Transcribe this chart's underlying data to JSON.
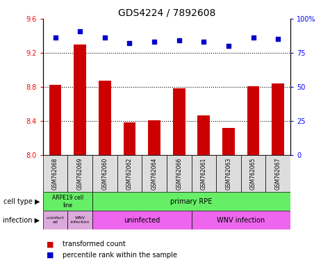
{
  "title": "GDS4224 / 7892608",
  "samples": [
    "GSM762068",
    "GSM762069",
    "GSM762060",
    "GSM762062",
    "GSM762064",
    "GSM762066",
    "GSM762061",
    "GSM762063",
    "GSM762065",
    "GSM762067"
  ],
  "transformed_count": [
    8.82,
    9.3,
    8.87,
    8.38,
    8.41,
    8.78,
    8.46,
    8.32,
    8.81,
    8.84
  ],
  "percentile_rank": [
    86,
    91,
    86,
    82,
    83,
    84,
    83,
    80,
    86,
    85
  ],
  "ylim_left": [
    8.0,
    9.6
  ],
  "ylim_right": [
    0,
    100
  ],
  "yticks_left": [
    8.0,
    8.4,
    8.8,
    9.2,
    9.6
  ],
  "yticks_right": [
    0,
    25,
    50,
    75,
    100
  ],
  "bar_color": "#cc0000",
  "dot_color": "#0000cc",
  "cell_type_green": "#66ee66",
  "infection_purple": "#ee66ee",
  "infection_light_purple": "#ddaadd",
  "label_left": "cell type",
  "label_left2": "infection",
  "legend_items": [
    "transformed count",
    "percentile rank within the sample"
  ]
}
